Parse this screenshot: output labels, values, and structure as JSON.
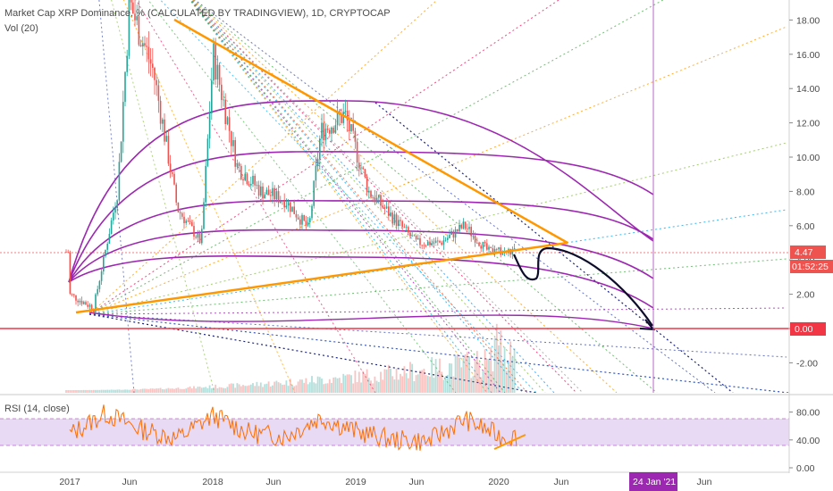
{
  "header": {
    "title": "Market Cap XRP Dominance, % (CALCULATED BY TRADINGVIEW), 1D, CRYPTOCAP",
    "volume_label": "Vol (20)",
    "rsi_label": "RSI (14, close)"
  },
  "badges": {
    "price": "4.47",
    "countdown": "01:52:25",
    "zero_line": "0.00",
    "date_marker": "24 Jan '21"
  },
  "colors": {
    "background": "#ffffff",
    "candle_up": "#26a69a",
    "candle_down": "#ef5350",
    "fib_arcs": "#9c27b0",
    "trend_lines": "#ff9800",
    "projection": "#000000",
    "rsi_line": "#ff6d00",
    "rsi_band": "#e8d9f5",
    "price_badge": "#ef5350",
    "zero_line": "#f23645",
    "date_badge": "#9c27b0",
    "vertical_marker": "#ba68c8"
  },
  "chart_data": [
    {
      "type": "line",
      "title": "Market Cap XRP Dominance, % (CALCULATED BY TRADINGVIEW), 1D, CRYPTOCAP",
      "x": [
        "2017-01",
        "2017-03",
        "2017-05",
        "2017-06",
        "2017-08",
        "2017-10",
        "2017-12",
        "2018-01",
        "2018-03",
        "2018-05",
        "2018-07",
        "2018-09",
        "2018-10",
        "2018-12",
        "2019-02",
        "2019-04",
        "2019-06",
        "2019-08",
        "2019-10",
        "2019-12",
        "2020-02"
      ],
      "series": [
        {
          "values": [
            2.0,
            1.2,
            8.0,
            19.0,
            15.0,
            7.0,
            5.0,
            16.0,
            9.5,
            8.0,
            7.5,
            5.8,
            11.5,
            12.5,
            8.0,
            6.5,
            5.0,
            5.0,
            6.0,
            4.5,
            4.47
          ]
        }
      ],
      "y_ticks": [
        "18.00",
        "16.00",
        "14.00",
        "12.00",
        "10.00",
        "8.00",
        "6.00",
        "4.00",
        "2.00",
        "0.00",
        "-2.00"
      ],
      "x_ticks": [
        "2017",
        "Jun",
        "2018",
        "Jun",
        "2019",
        "Jun",
        "2020",
        "Jun",
        "24 Jan '21",
        "Jun"
      ],
      "ylim": [
        -3.5,
        19.5
      ]
    },
    {
      "type": "line",
      "title": "RSI (14, close)",
      "y_ticks": [
        "80.00",
        "40.00",
        "0.00"
      ],
      "ylim": [
        0,
        100
      ],
      "band": [
        30,
        70
      ],
      "x": [
        "2017-01",
        "2017-04",
        "2017-07",
        "2017-10",
        "2018-01",
        "2018-04",
        "2018-07",
        "2018-10",
        "2019-01",
        "2019-04",
        "2019-07",
        "2019-10",
        "2020-01"
      ],
      "series": [
        {
          "values": [
            48,
            78,
            55,
            42,
            75,
            50,
            45,
            72,
            52,
            40,
            38,
            70,
            45
          ]
        }
      ]
    }
  ]
}
